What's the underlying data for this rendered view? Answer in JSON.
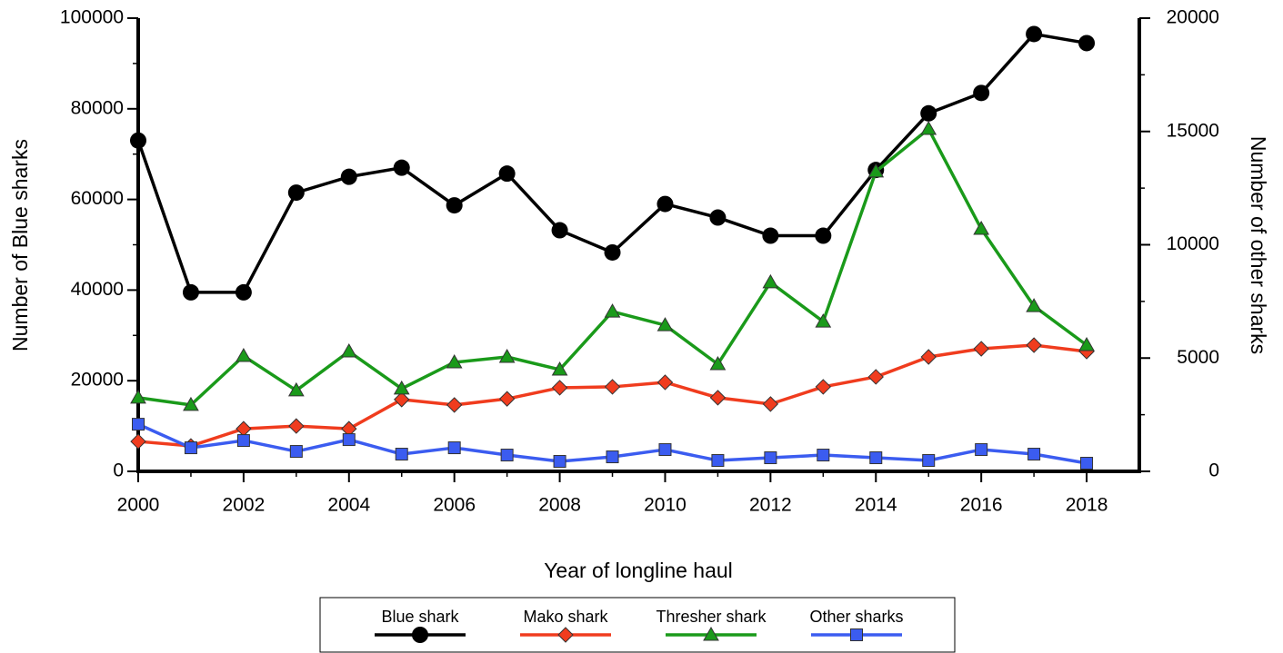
{
  "chart_data": {
    "type": "line",
    "x_label": "Year of longline haul",
    "y_label": "Number of Blue sharks",
    "y2_label": "Number of other sharks",
    "x": [
      2000,
      2001,
      2002,
      2003,
      2004,
      2005,
      2006,
      2007,
      2008,
      2009,
      2010,
      2011,
      2012,
      2013,
      2014,
      2015,
      2016,
      2017,
      2018
    ],
    "xlim": [
      2000,
      2019
    ],
    "xticks": [
      2000,
      2002,
      2004,
      2006,
      2008,
      2010,
      2012,
      2014,
      2016,
      2018
    ],
    "ylim": [
      0,
      100000
    ],
    "yticks": [
      0,
      20000,
      40000,
      60000,
      80000,
      100000
    ],
    "y2lim": [
      0,
      20000
    ],
    "y2ticks": [
      0,
      5000,
      10000,
      15000,
      20000
    ],
    "legend": "bottom",
    "series": [
      {
        "name": "Blue shark",
        "color": "#000000",
        "marker": "circle",
        "values": [
          73000,
          39500,
          39500,
          61500,
          65000,
          67000,
          58700,
          65700,
          53200,
          48300,
          59000,
          56000,
          52000,
          52000,
          66500,
          79000,
          83500,
          96500,
          94500
        ]
      },
      {
        "name": "Mako shark",
        "color": "#f03c1e",
        "marker": "diamond",
        "axis": "y2",
        "values": [
          1320,
          1120,
          1880,
          2000,
          1880,
          3170,
          2930,
          3200,
          3690,
          3730,
          3930,
          3250,
          2970,
          3730,
          4170,
          5050,
          5410,
          5570,
          5290
        ]
      },
      {
        "name": "Thresher shark",
        "color": "#1a9a1a",
        "marker": "triangle",
        "axis": "y2",
        "values": [
          3250,
          2930,
          5090,
          3570,
          5290,
          3650,
          4810,
          5050,
          4490,
          7050,
          6450,
          4730,
          8340,
          6610,
          13230,
          15110,
          10700,
          7290,
          5570
        ]
      },
      {
        "name": "Other sharks",
        "color": "#3b5cf0",
        "marker": "square",
        "axis": "y2",
        "values": [
          2080,
          1040,
          1360,
          880,
          1400,
          760,
          1040,
          720,
          440,
          640,
          960,
          480,
          600,
          720,
          600,
          480,
          960,
          760,
          360
        ]
      }
    ]
  }
}
